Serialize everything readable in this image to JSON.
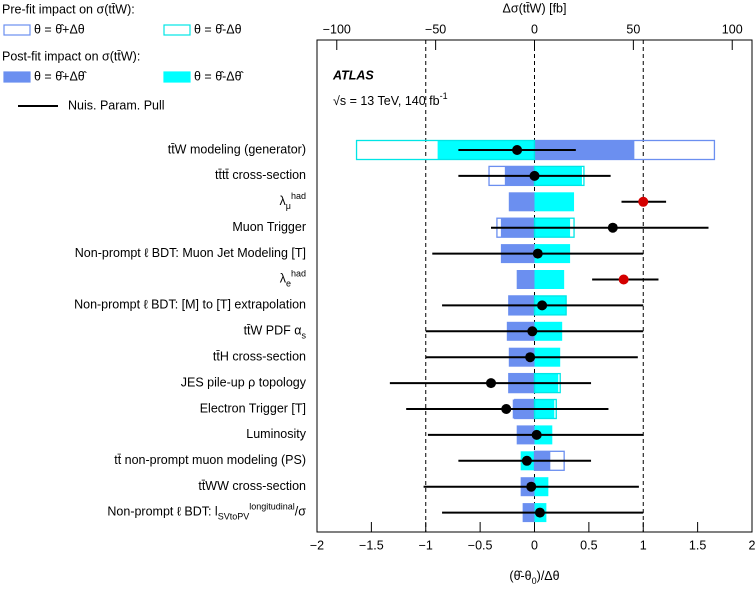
{
  "chart_data": {
    "type": "ranking",
    "x_label": {
      "base": "(θ̂-θ",
      "sub": "0",
      "tail": ")/Δθ"
    },
    "x2_label": "Δσ(tt̄W) [fb]",
    "atlas_label": "ATLAS",
    "energy_label": {
      "base": "√s = 13 TeV, 140 fb",
      "sup": "-1"
    },
    "pre_fit_title": "Pre-fit impact on σ(tt̄W):",
    "post_fit_title": "Post-fit impact on σ(tt̄W):",
    "xlim": [
      -2,
      2
    ],
    "xticks": [
      {
        "value": -2,
        "label": "−2"
      },
      {
        "value": -1.5,
        "label": "−1.5"
      },
      {
        "value": -1,
        "label": "−1"
      },
      {
        "value": -0.5,
        "label": "−0.5"
      },
      0,
      0.5,
      1,
      1.5,
      2
    ],
    "x2lim": [
      -110,
      110
    ],
    "x2ticks": [
      {
        "value": -100,
        "label": "−100"
      },
      {
        "value": -50,
        "label": "−50"
      },
      0,
      50,
      100
    ],
    "vlines": [
      -1,
      0,
      1
    ],
    "categories": [
      "tt̄W modeling (generator)",
      "tt̄tt̄ cross-section",
      {
        "base": "λ",
        "sub": "μ",
        "sup": "had"
      },
      "Muon Trigger",
      "Non-prompt ℓ BDT: Muon Jet Modeling [T]",
      {
        "base": "λ",
        "sub": "e",
        "sup": "had"
      },
      "Non-prompt ℓ BDT: [M] to [T] extrapolation",
      {
        "base": "tt̄W PDF α",
        "sub": "s"
      },
      "tt̄H cross-section",
      "JES pile-up ρ topology",
      "Electron Trigger [T]",
      "Luminosity",
      "tt̄ non-prompt muon modeling (PS)",
      "tt̄WW cross-section",
      {
        "base": "Non-prompt ℓ BDT: l",
        "sup": "longitudinal",
        "sub": "SVtoPV",
        "tail": "/σ"
      }
    ],
    "series": [
      {
        "name": "θ = θ̂+Δθ̂",
        "color": "#6b8ff0",
        "style": "fill",
        "values": [
          50.5,
          -15,
          -13,
          -17,
          -17,
          -9,
          -13,
          -14,
          -13,
          -13,
          -11,
          -9,
          8,
          -7,
          -6
        ]
      },
      {
        "name": "θ = θ̂-Δθ̂",
        "color": "#00ffff",
        "style": "fill",
        "values": [
          -49,
          24,
          20,
          18,
          18,
          15,
          16,
          14,
          13,
          12,
          10,
          9,
          -7,
          7,
          6
        ]
      },
      {
        "name": "θ = θ̂+Δθ",
        "color": "#6b8ff0",
        "style": "outline",
        "values": [
          91,
          -23,
          null,
          -19,
          null,
          null,
          -13,
          null,
          null,
          -13,
          -10,
          null,
          15,
          null,
          null
        ]
      },
      {
        "name": "θ = θ̂-Δθ",
        "color": "#00e5e5",
        "style": "outline",
        "values": [
          -90,
          25,
          null,
          20,
          null,
          null,
          16,
          null,
          null,
          13,
          11,
          null,
          null,
          null,
          null
        ]
      }
    ],
    "pull": {
      "name": "Nuis. Param. Pull",
      "color": "#000000",
      "values": [
        -0.16,
        0.0,
        1.0,
        0.72,
        0.03,
        0.82,
        0.07,
        -0.02,
        -0.04,
        -0.4,
        -0.26,
        0.02,
        -0.07,
        -0.03,
        0.05
      ],
      "lower": [
        -0.7,
        -0.7,
        0.8,
        -0.4,
        -0.94,
        0.53,
        -0.85,
        -1.0,
        -1.0,
        -1.33,
        -1.18,
        -0.98,
        -0.7,
        -1.02,
        -0.85
      ],
      "upper": [
        0.38,
        0.7,
        1.21,
        1.6,
        1.0,
        1.14,
        1.0,
        1.0,
        0.95,
        0.52,
        0.68,
        1.0,
        0.52,
        0.96,
        1.0
      ],
      "point_colors": [
        "#000000",
        "#000000",
        "#d40000",
        "#000000",
        "#000000",
        "#d40000",
        "#000000",
        "#000000",
        "#000000",
        "#000000",
        "#000000",
        "#000000",
        "#000000",
        "#000000",
        "#000000"
      ]
    }
  }
}
